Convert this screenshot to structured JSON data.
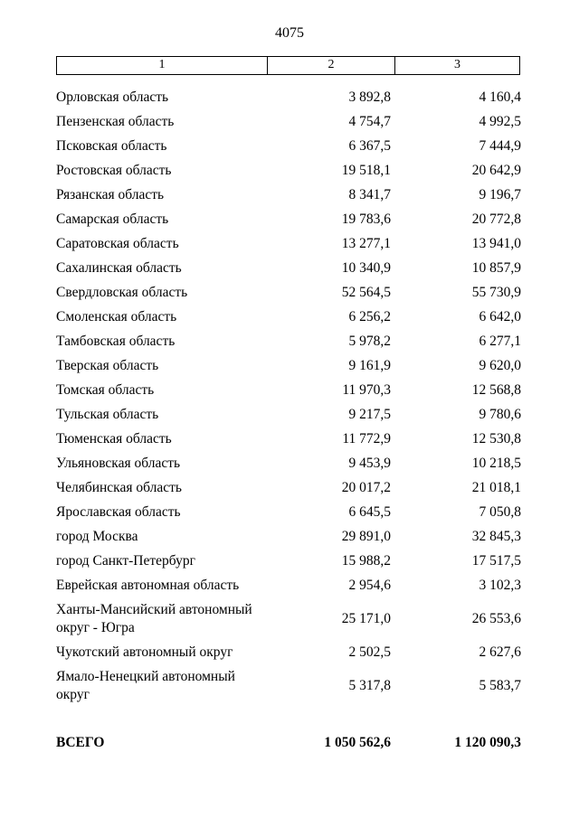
{
  "page": {
    "number": "4075"
  },
  "table": {
    "header": {
      "col1": "1",
      "col2": "2",
      "col3": "3"
    },
    "rows": [
      {
        "name": "Орловская область",
        "v2": "3 892,8",
        "v3": "4 160,4"
      },
      {
        "name": "Пензенская область",
        "v2": "4 754,7",
        "v3": "4 992,5"
      },
      {
        "name": "Псковская область",
        "v2": "6 367,5",
        "v3": "7 444,9"
      },
      {
        "name": "Ростовская область",
        "v2": "19 518,1",
        "v3": "20 642,9"
      },
      {
        "name": "Рязанская область",
        "v2": "8 341,7",
        "v3": "9 196,7"
      },
      {
        "name": "Самарская область",
        "v2": "19 783,6",
        "v3": "20 772,8"
      },
      {
        "name": "Саратовская область",
        "v2": "13 277,1",
        "v3": "13 941,0"
      },
      {
        "name": "Сахалинская область",
        "v2": "10 340,9",
        "v3": "10 857,9"
      },
      {
        "name": "Свердловская область",
        "v2": "52 564,5",
        "v3": "55 730,9"
      },
      {
        "name": "Смоленская область",
        "v2": "6 256,2",
        "v3": "6 642,0"
      },
      {
        "name": "Тамбовская область",
        "v2": "5 978,2",
        "v3": "6 277,1"
      },
      {
        "name": "Тверская область",
        "v2": "9 161,9",
        "v3": "9 620,0"
      },
      {
        "name": "Томская область",
        "v2": "11 970,3",
        "v3": "12 568,8"
      },
      {
        "name": "Тульская область",
        "v2": "9 217,5",
        "v3": "9 780,6"
      },
      {
        "name": "Тюменская область",
        "v2": "11 772,9",
        "v3": "12 530,8"
      },
      {
        "name": "Ульяновская область",
        "v2": "9 453,9",
        "v3": "10 218,5"
      },
      {
        "name": "Челябинская область",
        "v2": "20 017,2",
        "v3": "21 018,1"
      },
      {
        "name": "Ярославская область",
        "v2": "6 645,5",
        "v3": "7 050,8"
      },
      {
        "name": "город Москва",
        "v2": "29 891,0",
        "v3": "32 845,3"
      },
      {
        "name": "город Санкт-Петербург",
        "v2": "15 988,2",
        "v3": "17 517,5"
      },
      {
        "name": "Еврейская автономная область",
        "v2": "2 954,6",
        "v3": "3 102,3"
      },
      {
        "name": "Ханты-Мансийский автономный округ - Югра",
        "v2": "25 171,0",
        "v3": "26 553,6"
      },
      {
        "name": "Чукотский автономный округ",
        "v2": "2 502,5",
        "v3": "2 627,6"
      },
      {
        "name": "Ямало-Ненецкий автономный округ",
        "v2": "5 317,8",
        "v3": "5 583,7"
      }
    ],
    "total": {
      "label": "ВСЕГО",
      "v2": "1 050 562,6",
      "v3": "1 120 090,3"
    }
  }
}
